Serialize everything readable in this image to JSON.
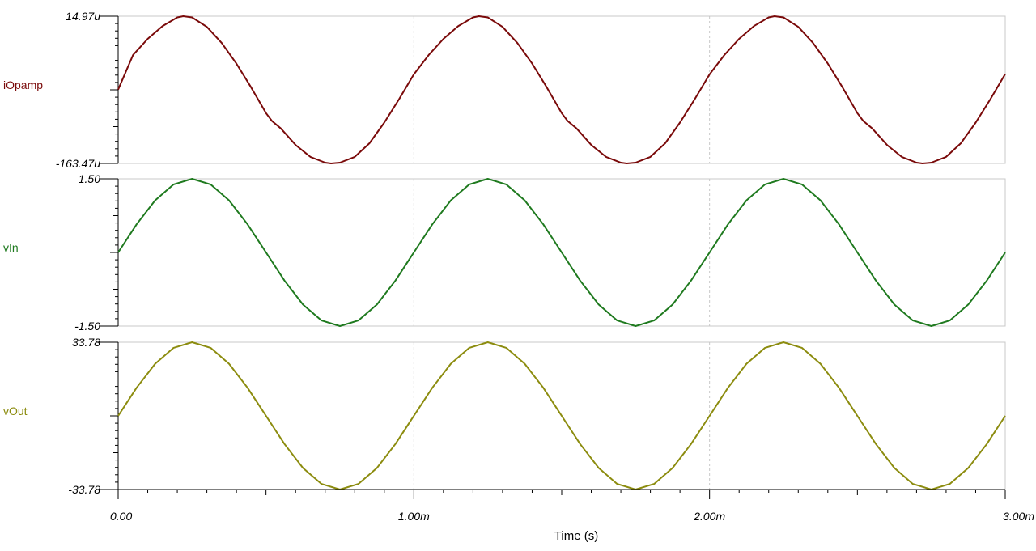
{
  "chart_data": {
    "type": "line",
    "xlabel": "Time (s)",
    "xlim": [
      0,
      0.003
    ],
    "xticks": [
      {
        "value": 0,
        "label": "0.00"
      },
      {
        "value": 0.001,
        "label": "1.00m"
      },
      {
        "value": 0.002,
        "label": "2.00m"
      },
      {
        "value": 0.003,
        "label": "3.00m"
      }
    ],
    "vertical_grid": true,
    "panels": [
      {
        "name": "iOpamp",
        "color": "#7a0a0a",
        "ylim": [
          -0.00016347,
          1.497e-05
        ],
        "ytick_labels": {
          "top": "14.97u",
          "bottom": "-163.47u"
        },
        "series": {
          "x": [
            0,
            5e-05,
            0.0001,
            0.00015,
            0.0002,
            0.00022,
            0.00025,
            0.0003,
            0.00035,
            0.0004,
            0.00045,
            0.0005,
            0.00052,
            0.00055,
            0.0006,
            0.00065,
            0.0007,
            0.00072,
            0.00075,
            0.0008,
            0.00085,
            0.0009,
            0.00095,
            0.001,
            0.00105,
            0.0011,
            0.00115,
            0.0012,
            0.00122,
            0.00125,
            0.0013,
            0.00135,
            0.0014,
            0.00145,
            0.0015,
            0.00152,
            0.00155,
            0.0016,
            0.00165,
            0.0017,
            0.00172,
            0.00175,
            0.0018,
            0.00185,
            0.0019,
            0.00195,
            0.002,
            0.00205,
            0.0021,
            0.00215,
            0.0022,
            0.00222,
            0.00225,
            0.0023,
            0.00235,
            0.0024,
            0.00245,
            0.0025,
            0.00252,
            0.00255,
            0.0026,
            0.00265,
            0.0027,
            0.00272,
            0.00275,
            0.0028,
            0.00285,
            0.0029,
            0.00295,
            0.003
          ],
          "y": [
            -7.4e-05,
            -3.22e-05,
            -1.25e-05,
            3e-06,
            1.35e-05,
            1.497e-05,
            1.35e-05,
            2e-06,
            -1.75e-05,
            -4.25e-05,
            -7.15e-05,
            -0.0001025,
            -0.000112,
            -0.000121,
            -0.000141,
            -0.0001555,
            -0.0001625,
            -0.00016347,
            -0.0001625,
            -0.0001555,
            -0.000139,
            -0.000114,
            -8.55e-05,
            -5.55e-05,
            -3.22e-05,
            -1.25e-05,
            3e-06,
            1.35e-05,
            1.497e-05,
            1.35e-05,
            2e-06,
            -1.75e-05,
            -4.25e-05,
            -7.15e-05,
            -0.0001025,
            -0.000112,
            -0.000121,
            -0.000141,
            -0.0001555,
            -0.0001625,
            -0.00016347,
            -0.0001625,
            -0.0001555,
            -0.000139,
            -0.000114,
            -8.55e-05,
            -5.55e-05,
            -3.22e-05,
            -1.25e-05,
            3e-06,
            1.35e-05,
            1.497e-05,
            1.35e-05,
            2e-06,
            -1.75e-05,
            -4.25e-05,
            -7.15e-05,
            -0.0001025,
            -0.000112,
            -0.000121,
            -0.000141,
            -0.0001555,
            -0.0001625,
            -0.00016347,
            -0.0001625,
            -0.0001555,
            -0.000139,
            -0.000114,
            -8.55e-05,
            -5.5e-05
          ]
        }
      },
      {
        "name": "vIn",
        "color": "#1f7a1f",
        "ylim": [
          -1.5,
          1.5
        ],
        "ytick_labels": {
          "top": "1.50",
          "bottom": "-1.50"
        },
        "series": {
          "x": [
            0,
            6.25e-05,
            0.000125,
            0.0001875,
            0.00025,
            0.0003125,
            0.000375,
            0.0004375,
            0.0005,
            0.0005625,
            0.000625,
            0.0006875,
            0.00075,
            0.0008125,
            0.000875,
            0.0009375,
            0.001,
            0.0010625,
            0.001125,
            0.0011875,
            0.00125,
            0.0013125,
            0.001375,
            0.0014375,
            0.0015,
            0.0015625,
            0.001625,
            0.0016875,
            0.00175,
            0.0018125,
            0.001875,
            0.0019375,
            0.002,
            0.0020625,
            0.002125,
            0.0021875,
            0.00225,
            0.0023125,
            0.002375,
            0.0024375,
            0.0025,
            0.0025625,
            0.002625,
            0.0026875,
            0.00275,
            0.0028125,
            0.002875,
            0.0029375,
            0.003
          ],
          "y": [
            0,
            0.574,
            1.061,
            1.386,
            1.5,
            1.386,
            1.061,
            0.574,
            0,
            -0.574,
            -1.061,
            -1.386,
            -1.5,
            -1.386,
            -1.061,
            -0.574,
            0,
            0.574,
            1.061,
            1.386,
            1.5,
            1.386,
            1.061,
            0.574,
            0,
            -0.574,
            -1.061,
            -1.386,
            -1.5,
            -1.386,
            -1.061,
            -0.574,
            0,
            0.574,
            1.061,
            1.386,
            1.5,
            1.386,
            1.061,
            0.574,
            0,
            -0.574,
            -1.061,
            -1.386,
            -1.5,
            -1.386,
            -1.061,
            -0.574,
            0
          ]
        }
      },
      {
        "name": "vOut",
        "color": "#8c8c0f",
        "ylim": [
          -33.78,
          33.78
        ],
        "ytick_labels": {
          "top": "33.78",
          "bottom": "-33.78"
        },
        "series": {
          "x": [
            0,
            6.25e-05,
            0.000125,
            0.0001875,
            0.00025,
            0.0003125,
            0.000375,
            0.0004375,
            0.0005,
            0.0005625,
            0.000625,
            0.0006875,
            0.00075,
            0.0008125,
            0.000875,
            0.0009375,
            0.001,
            0.0010625,
            0.001125,
            0.0011875,
            0.00125,
            0.0013125,
            0.001375,
            0.0014375,
            0.0015,
            0.0015625,
            0.001625,
            0.0016875,
            0.00175,
            0.0018125,
            0.001875,
            0.0019375,
            0.002,
            0.0020625,
            0.002125,
            0.0021875,
            0.00225,
            0.0023125,
            0.002375,
            0.0024375,
            0.0025,
            0.0025625,
            0.002625,
            0.0026875,
            0.00275,
            0.0028125,
            0.002875,
            0.0029375,
            0.003
          ],
          "y": [
            0,
            12.93,
            23.89,
            31.21,
            33.78,
            31.21,
            23.89,
            12.93,
            0,
            -12.93,
            -23.89,
            -31.21,
            -33.78,
            -31.21,
            -23.89,
            -12.93,
            0,
            12.93,
            23.89,
            31.21,
            33.78,
            31.21,
            23.89,
            12.93,
            0,
            -12.93,
            -23.89,
            -31.21,
            -33.78,
            -31.21,
            -23.89,
            -12.93,
            0,
            12.93,
            23.89,
            31.21,
            33.78,
            31.21,
            23.89,
            12.93,
            0,
            -12.93,
            -23.89,
            -31.21,
            -33.78,
            -31.21,
            -23.89,
            -12.93,
            0
          ]
        }
      }
    ]
  }
}
